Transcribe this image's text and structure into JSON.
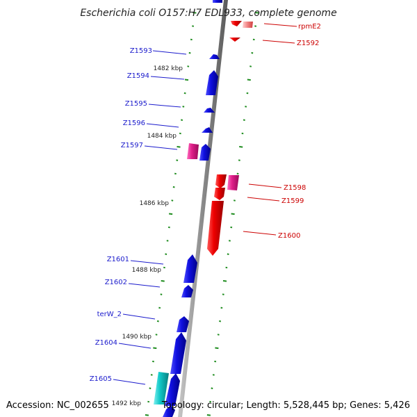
{
  "title": "Escherichia coli O157:H7 EDL933, complete genome",
  "footer": {
    "accession": "Accession: NC_002655",
    "topology": "Topology: circular; Length: 5,528,445 bp; Genes: 5,426"
  },
  "scale_labels": [
    "1482 kbp",
    "1484 kbp",
    "1486 kbp",
    "1488 kbp",
    "1490 kbp",
    "1492 kbp"
  ],
  "colors": {
    "forward_gene": "#1010e0",
    "reverse_gene": "#ee0000",
    "rna_gene": "#e0208a",
    "other_gene": "#10c8c8",
    "backbone": "#8a8a8a",
    "tick": "#1e8c1e"
  },
  "genes_forward": [
    {
      "name": "Z1593",
      "color": "blue"
    },
    {
      "name": "Z1594",
      "color": "blue"
    },
    {
      "name": "Z1595",
      "color": "blue"
    },
    {
      "name": "Z1596",
      "color": "blue"
    },
    {
      "name": "Z1597",
      "color": "magenta"
    },
    {
      "name": "Z1601",
      "color": "blue"
    },
    {
      "name": "Z1602",
      "color": "blue"
    },
    {
      "name": "terW_2",
      "color": "blue"
    },
    {
      "name": "Z1604",
      "color": "blue"
    },
    {
      "name": "Z1605",
      "color": "cyan"
    }
  ],
  "genes_reverse": [
    {
      "name": "rpmE2",
      "color": "red"
    },
    {
      "name": "Z1592",
      "color": "red"
    },
    {
      "name": "Z1598",
      "color": "red"
    },
    {
      "name": "Z1599",
      "color": "red"
    },
    {
      "name": "Z1600",
      "color": "red"
    }
  ]
}
